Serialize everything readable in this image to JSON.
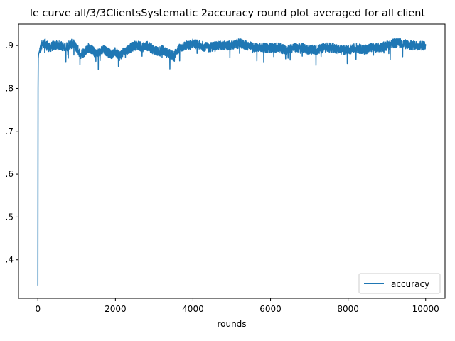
{
  "chart_data": {
    "type": "line",
    "title": "le curve all/3/3ClientsSystematic 2accuracy round plot averaged for all client",
    "xlabel": "rounds",
    "ylabel": "",
    "xlim": [
      -500,
      10500
    ],
    "ylim": [
      0.31,
      0.95
    ],
    "x_ticks": [
      0,
      2000,
      4000,
      6000,
      8000,
      10000
    ],
    "x_tick_labels": [
      "0",
      "2000",
      "4000",
      "6000",
      "8000",
      "10000"
    ],
    "y_ticks": [
      0.4,
      0.5,
      0.6,
      0.7,
      0.8,
      0.9
    ],
    "y_tick_labels": [
      ".4",
      ".5",
      ".6",
      ".7",
      ".8",
      ".9"
    ],
    "grid": false,
    "legend_position": "lower-right",
    "series": [
      {
        "name": "accuracy",
        "color": "#1f77b4",
        "x": [
          0,
          5,
          10,
          20,
          50,
          100,
          200,
          300,
          400,
          500,
          600,
          700,
          800,
          900,
          1000,
          1100,
          1200,
          1300,
          1400,
          1500,
          1600,
          1700,
          1800,
          1900,
          2000,
          2100,
          2200,
          2300,
          2400,
          2500,
          2600,
          2700,
          2800,
          2900,
          3000,
          3100,
          3200,
          3300,
          3400,
          3500,
          3600,
          3700,
          3800,
          3900,
          4000,
          4200,
          4400,
          4600,
          4800,
          5000,
          5200,
          5400,
          5600,
          5800,
          6000,
          6200,
          6400,
          6600,
          6800,
          7000,
          7200,
          7400,
          7600,
          7800,
          8000,
          8200,
          8400,
          8600,
          8800,
          9000,
          9200,
          9400,
          9600,
          9800,
          10000
        ],
        "values": [
          0.34,
          0.8,
          0.87,
          0.88,
          0.89,
          0.9,
          0.905,
          0.895,
          0.9,
          0.9,
          0.9,
          0.895,
          0.9,
          0.905,
          0.895,
          0.88,
          0.885,
          0.895,
          0.89,
          0.88,
          0.885,
          0.89,
          0.885,
          0.88,
          0.885,
          0.875,
          0.885,
          0.89,
          0.895,
          0.9,
          0.9,
          0.895,
          0.9,
          0.895,
          0.89,
          0.885,
          0.89,
          0.885,
          0.88,
          0.875,
          0.89,
          0.895,
          0.9,
          0.9,
          0.905,
          0.9,
          0.895,
          0.9,
          0.9,
          0.9,
          0.905,
          0.9,
          0.895,
          0.895,
          0.895,
          0.895,
          0.89,
          0.895,
          0.895,
          0.89,
          0.89,
          0.895,
          0.895,
          0.89,
          0.89,
          0.895,
          0.89,
          0.895,
          0.895,
          0.9,
          0.905,
          0.905,
          0.9,
          0.9,
          0.9
        ]
      }
    ]
  }
}
